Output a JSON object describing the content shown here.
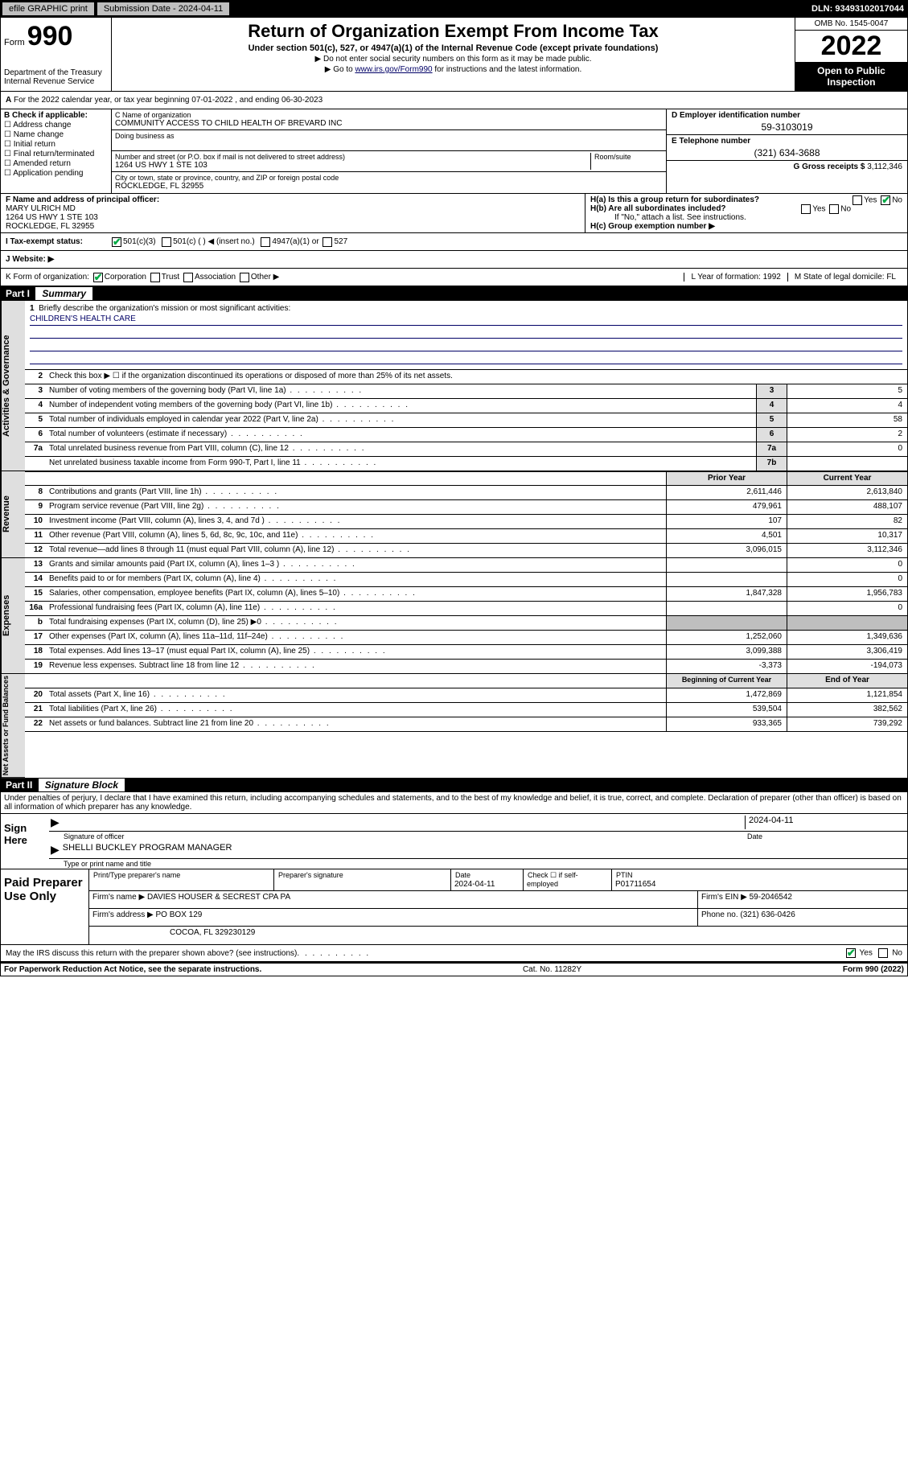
{
  "topbar": {
    "efile": "efile GRAPHIC print",
    "submission_label": "Submission Date - 2024-04-11",
    "dln": "DLN: 93493102017044"
  },
  "header": {
    "form_word": "Form",
    "form_num": "990",
    "dept": "Department of the Treasury\nInternal Revenue Service",
    "title": "Return of Organization Exempt From Income Tax",
    "sub1": "Under section 501(c), 527, or 4947(a)(1) of the Internal Revenue Code (except private foundations)",
    "sub2a": "▶ Do not enter social security numbers on this form as it may be made public.",
    "sub2b_pre": "▶ Go to ",
    "sub2b_link": "www.irs.gov/Form990",
    "sub2b_post": " for instructions and the latest information.",
    "omb": "OMB No. 1545-0047",
    "year": "2022",
    "open": "Open to Public Inspection"
  },
  "line_a": "For the 2022 calendar year, or tax year beginning 07-01-2022   , and ending 06-30-2023",
  "box_b": {
    "title": "B Check if applicable:",
    "items": [
      "Address change",
      "Name change",
      "Initial return",
      "Final return/terminated",
      "Amended return",
      "Application pending"
    ]
  },
  "box_c": {
    "label_name": "C Name of organization",
    "name": "COMMUNITY ACCESS TO CHILD HEALTH OF BREVARD INC",
    "dba_label": "Doing business as",
    "addr_label": "Number and street (or P.O. box if mail is not delivered to street address)",
    "room_label": "Room/suite",
    "addr": "1264 US HWY 1 STE 103",
    "city_label": "City or town, state or province, country, and ZIP or foreign postal code",
    "city": "ROCKLEDGE, FL  32955"
  },
  "box_d": {
    "label": "D Employer identification number",
    "val": "59-3103019"
  },
  "box_e": {
    "label": "E Telephone number",
    "val": "(321) 634-3688"
  },
  "box_g": {
    "label": "G Gross receipts $",
    "val": "3,112,346"
  },
  "box_f": {
    "label": "F  Name and address of principal officer:",
    "name": "MARY ULRICH MD",
    "addr1": "1264 US HWY 1 STE 103",
    "addr2": "ROCKLEDGE, FL  32955"
  },
  "box_h": {
    "ha": "H(a)  Is this a group return for subordinates?",
    "hb": "H(b)  Are all subordinates included?",
    "hb_note": "If \"No,\" attach a list. See instructions.",
    "hc": "H(c)  Group exemption number ▶",
    "yes": "Yes",
    "no": "No"
  },
  "line_i": {
    "label": "I   Tax-exempt status:",
    "opts": [
      "501(c)(3)",
      "501(c) (  ) ◀ (insert no.)",
      "4947(a)(1) or",
      "527"
    ]
  },
  "line_j": "J   Website: ▶",
  "line_k": {
    "left": "K Form of organization:",
    "opts": [
      "Corporation",
      "Trust",
      "Association",
      "Other ▶"
    ],
    "l": "L Year of formation: 1992",
    "m": "M State of legal domicile: FL"
  },
  "part1": {
    "title": "Part I",
    "label": "Summary",
    "q1": "Briefly describe the organization's mission or most significant activities:",
    "mission": "CHILDREN'S HEALTH CARE",
    "q2": "Check this box ▶ ☐  if the organization discontinued its operations or disposed of more than 25% of its net assets.",
    "rows_gov": [
      {
        "n": "3",
        "t": "Number of voting members of the governing body (Part VI, line 1a)",
        "box": "3",
        "v": "5"
      },
      {
        "n": "4",
        "t": "Number of independent voting members of the governing body (Part VI, line 1b)",
        "box": "4",
        "v": "4"
      },
      {
        "n": "5",
        "t": "Total number of individuals employed in calendar year 2022 (Part V, line 2a)",
        "box": "5",
        "v": "58"
      },
      {
        "n": "6",
        "t": "Total number of volunteers (estimate if necessary)",
        "box": "6",
        "v": "2"
      },
      {
        "n": "7a",
        "t": "Total unrelated business revenue from Part VIII, column (C), line 12",
        "box": "7a",
        "v": "0"
      },
      {
        "n": "",
        "t": "Net unrelated business taxable income from Form 990-T, Part I, line 11",
        "box": "7b",
        "v": ""
      }
    ],
    "head_b": "",
    "head_prior": "Prior Year",
    "head_cur": "Current Year",
    "rows_rev": [
      {
        "n": "8",
        "t": "Contributions and grants (Part VIII, line 1h)",
        "p": "2,611,446",
        "c": "2,613,840"
      },
      {
        "n": "9",
        "t": "Program service revenue (Part VIII, line 2g)",
        "p": "479,961",
        "c": "488,107"
      },
      {
        "n": "10",
        "t": "Investment income (Part VIII, column (A), lines 3, 4, and 7d )",
        "p": "107",
        "c": "82"
      },
      {
        "n": "11",
        "t": "Other revenue (Part VIII, column (A), lines 5, 6d, 8c, 9c, 10c, and 11e)",
        "p": "4,501",
        "c": "10,317"
      },
      {
        "n": "12",
        "t": "Total revenue—add lines 8 through 11 (must equal Part VIII, column (A), line 12)",
        "p": "3,096,015",
        "c": "3,112,346"
      }
    ],
    "rows_exp": [
      {
        "n": "13",
        "t": "Grants and similar amounts paid (Part IX, column (A), lines 1–3 )",
        "p": "",
        "c": "0"
      },
      {
        "n": "14",
        "t": "Benefits paid to or for members (Part IX, column (A), line 4)",
        "p": "",
        "c": "0"
      },
      {
        "n": "15",
        "t": "Salaries, other compensation, employee benefits (Part IX, column (A), lines 5–10)",
        "p": "1,847,328",
        "c": "1,956,783"
      },
      {
        "n": "16a",
        "t": "Professional fundraising fees (Part IX, column (A), line 11e)",
        "p": "",
        "c": "0"
      },
      {
        "n": "b",
        "t": "Total fundraising expenses (Part IX, column (D), line 25) ▶0",
        "p": "shade",
        "c": "shade"
      },
      {
        "n": "17",
        "t": "Other expenses (Part IX, column (A), lines 11a–11d, 11f–24e)",
        "p": "1,252,060",
        "c": "1,349,636"
      },
      {
        "n": "18",
        "t": "Total expenses. Add lines 13–17 (must equal Part IX, column (A), line 25)",
        "p": "3,099,388",
        "c": "3,306,419"
      },
      {
        "n": "19",
        "t": "Revenue less expenses. Subtract line 18 from line 12",
        "p": "-3,373",
        "c": "-194,073"
      }
    ],
    "head_beg": "Beginning of Current Year",
    "head_end": "End of Year",
    "rows_net": [
      {
        "n": "20",
        "t": "Total assets (Part X, line 16)",
        "p": "1,472,869",
        "c": "1,121,854"
      },
      {
        "n": "21",
        "t": "Total liabilities (Part X, line 26)",
        "p": "539,504",
        "c": "382,562"
      },
      {
        "n": "22",
        "t": "Net assets or fund balances. Subtract line 21 from line 20",
        "p": "933,365",
        "c": "739,292"
      }
    ],
    "vtab_gov": "Activities & Governance",
    "vtab_rev": "Revenue",
    "vtab_exp": "Expenses",
    "vtab_net": "Net Assets or Fund Balances"
  },
  "part2": {
    "title": "Part II",
    "label": "Signature Block",
    "decl": "Under penalties of perjury, I declare that I have examined this return, including accompanying schedules and statements, and to the best of my knowledge and belief, it is true, correct, and complete. Declaration of preparer (other than officer) is based on all information of which preparer has any knowledge.",
    "sign_here": "Sign Here",
    "sig_officer": "Signature of officer",
    "sig_date": "2024-04-11",
    "date_lbl": "Date",
    "name_title": "SHELLI BUCKLEY  PROGRAM MANAGER",
    "name_title_lbl": "Type or print name and title",
    "paid": "Paid Preparer Use Only",
    "h1": "Print/Type preparer's name",
    "h2": "Preparer's signature",
    "h3": "Date",
    "h3v": "2024-04-11",
    "h4": "Check ☐ if self-employed",
    "h5": "PTIN",
    "h5v": "P01711654",
    "firm_name_lbl": "Firm's name   ▶",
    "firm_name": "DAVIES HOUSER & SECREST CPA PA",
    "firm_ein_lbl": "Firm's EIN ▶",
    "firm_ein": "59-2046542",
    "firm_addr_lbl": "Firm's address ▶",
    "firm_addr1": "PO BOX 129",
    "firm_addr2": "COCOA, FL  329230129",
    "phone_lbl": "Phone no.",
    "phone": "(321) 636-0426",
    "discuss": "May the IRS discuss this return with the preparer shown above? (see instructions)",
    "yes": "Yes",
    "no": "No"
  },
  "footer": {
    "left": "For Paperwork Reduction Act Notice, see the separate instructions.",
    "mid": "Cat. No. 11282Y",
    "right": "Form 990 (2022)"
  }
}
